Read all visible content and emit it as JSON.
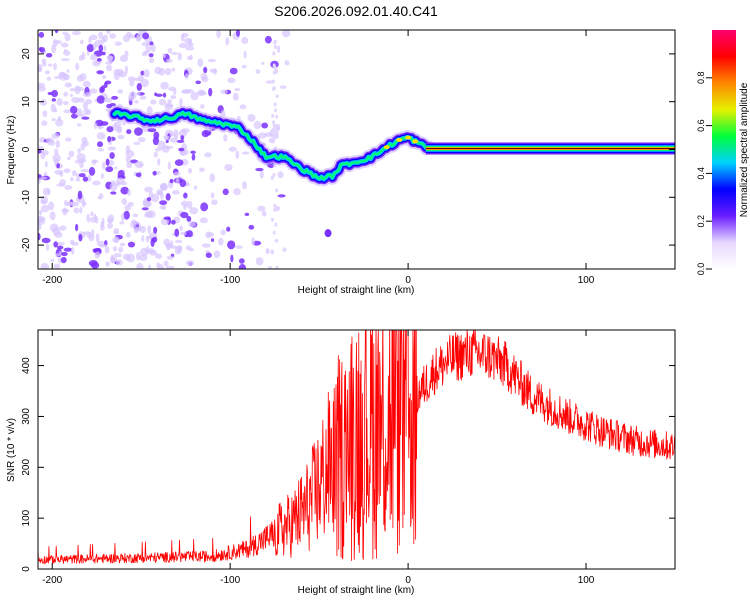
{
  "figure_title": "S206.2026.092.01.40.C41",
  "chart_data": [
    {
      "type": "heatmap",
      "title": "S206.2026.092.01.40.C41",
      "xlabel": "Height of straight line (km)",
      "ylabel": "Frequency (Hz)",
      "xlim": [
        -208,
        150
      ],
      "ylim": [
        -25,
        25
      ],
      "xticks": [
        -200,
        -100,
        0,
        100
      ],
      "yticks": [
        -20,
        -10,
        0,
        10,
        20
      ],
      "colorbar": {
        "label": "Normalized spectral amplitude",
        "range": [
          0,
          1
        ],
        "ticks": [
          "0.0",
          "0.2",
          "0.4",
          "0.6",
          "0.8"
        ],
        "colormap": [
          "#ffffff",
          "#e6d8ff",
          "#6a1cff",
          "#0000ff",
          "#00d2ff",
          "#00ff3a",
          "#e6f000",
          "#ff8800",
          "#ff0000",
          "#ff0070"
        ]
      },
      "ridge": {
        "x": [
          -165,
          -155,
          -145,
          -135,
          -125,
          -115,
          -105,
          -95,
          -88,
          -80,
          -70,
          -60,
          -50,
          -42,
          -38,
          -34,
          -28,
          -20,
          -12,
          -5,
          0,
          5,
          10,
          15,
          50,
          100,
          150
        ],
        "y": [
          7.5,
          7.0,
          6.0,
          6.5,
          7.5,
          6.0,
          5.5,
          4.5,
          2.0,
          -1.5,
          -1.5,
          -4.0,
          -6.0,
          -5.5,
          -3.5,
          -3.0,
          -2.5,
          -1.5,
          0.5,
          2.0,
          2.5,
          1.5,
          0.5,
          0.2,
          0.2,
          0.2,
          0.2
        ]
      }
    },
    {
      "type": "line",
      "xlabel": "Height of straight line (km)",
      "ylabel": "SNR (10 * v/v)",
      "xlim": [
        -208,
        150
      ],
      "ylim": [
        0,
        470
      ],
      "xticks": [
        -200,
        -100,
        0,
        100
      ],
      "yticks": [
        0,
        100,
        200,
        300,
        400
      ],
      "color": "#ff0000",
      "envelope": {
        "x": [
          -208,
          -150,
          -110,
          -90,
          -75,
          -65,
          -55,
          -45,
          -35,
          -28,
          -20,
          -12,
          -5,
          0,
          5,
          15,
          25,
          35,
          45,
          55,
          70,
          90,
          110,
          130,
          150
        ],
        "y": [
          18,
          22,
          25,
          40,
          70,
          90,
          130,
          200,
          230,
          280,
          290,
          300,
          290,
          300,
          340,
          390,
          415,
          425,
          420,
          400,
          340,
          300,
          270,
          250,
          240
        ]
      }
    }
  ]
}
